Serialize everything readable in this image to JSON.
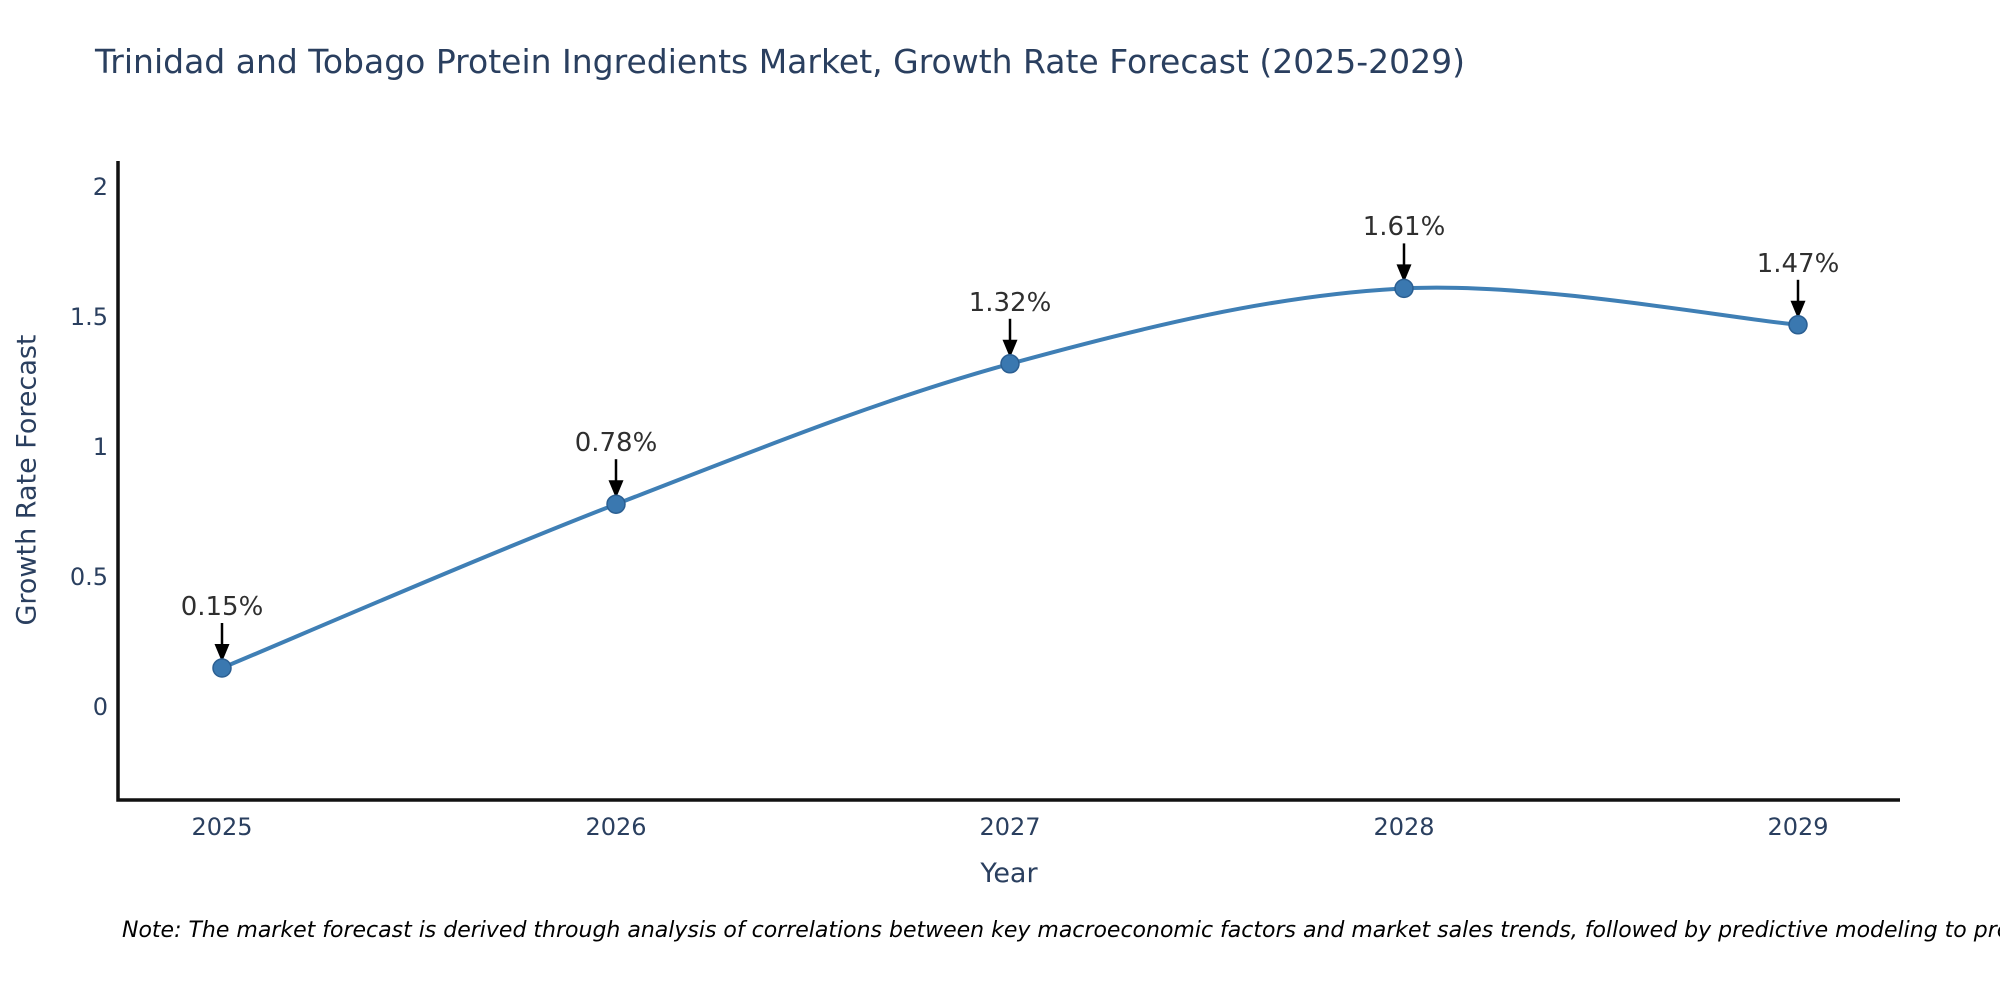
{
  "title": "Trinidad and Tobago Protein Ingredients Market, Growth Rate Forecast (2025-2029)",
  "note": "Note: The market forecast is derived through analysis of correlations between key macroeconomic factors and market sales trends, followed by predictive modeling to project future sales",
  "chart_data": {
    "type": "line",
    "title": "Trinidad and Tobago Protein Ingredients Market, Growth Rate Forecast (2025-2029)",
    "xlabel": "Year",
    "ylabel": "Growth Rate Forecast",
    "categories": [
      "2025",
      "2026",
      "2027",
      "2028",
      "2029"
    ],
    "series": [
      {
        "name": "Growth Rate Forecast",
        "values": [
          0.15,
          0.78,
          1.32,
          1.61,
          1.47
        ]
      }
    ],
    "point_labels": [
      "0.15%",
      "0.78%",
      "1.32%",
      "1.61%",
      "1.47%"
    ],
    "yticks": [
      "0",
      "0.5",
      "1",
      "1.5",
      "2"
    ],
    "ytick_values": [
      0,
      0.5,
      1,
      1.5,
      2
    ],
    "ylim": [
      -0.36,
      2.1
    ],
    "grid": false,
    "legend_position": "none",
    "line_shape": "spline",
    "colors": {
      "line": "#3f7fb5",
      "marker_fill": "#3a78b0",
      "marker_edge": "#2b5f92",
      "axis_line": "#111111",
      "axis_text": "#2a3f5f",
      "annotation_text": "#2f2f2f",
      "annotation_arrow": "#000000",
      "background": "#ffffff"
    }
  }
}
